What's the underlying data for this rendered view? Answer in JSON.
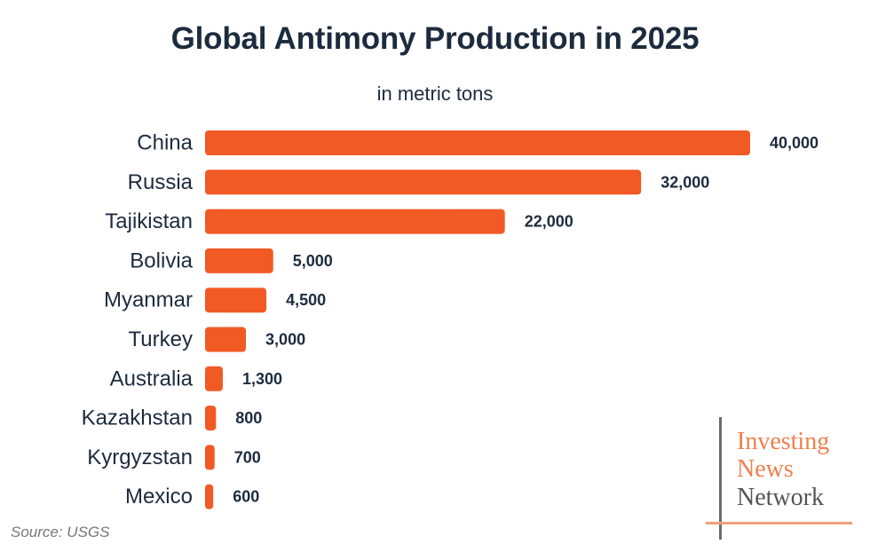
{
  "chart_data": {
    "type": "bar",
    "orientation": "horizontal",
    "title": "Global Antimony Production in 2025",
    "subtitle": "in metric tons",
    "categories": [
      "China",
      "Russia",
      "Tajikistan",
      "Bolivia",
      "Myanmar",
      "Turkey",
      "Australia",
      "Kazakhstan",
      "Kyrgyzstan",
      "Mexico"
    ],
    "values": [
      40000,
      32000,
      22000,
      5000,
      4500,
      3000,
      1300,
      800,
      700,
      600
    ],
    "value_labels": [
      "40,000",
      "32,000",
      "22,000",
      "5,000",
      "4,500",
      "3,000",
      "1,300",
      "800",
      "700",
      "600"
    ],
    "xlim": [
      0,
      40000
    ],
    "grid": false,
    "bar_color": "#f15a24"
  },
  "source": "Source: USGS",
  "logo": {
    "line1": "Investing",
    "line2": "News",
    "line3": "Network"
  }
}
